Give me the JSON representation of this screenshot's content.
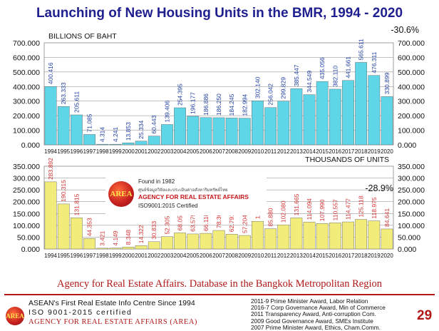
{
  "title": "Launching of New Housing Units in the BMR, 1994 - 2020",
  "chart_data": [
    {
      "type": "bar",
      "unit_label": "BILLIONS OF BAHT",
      "change_label": "-30.6%",
      "categories": [
        "1994",
        "1995",
        "1996",
        "1997",
        "1998",
        "1999",
        "2000",
        "2001",
        "2002",
        "2003",
        "2004",
        "2005",
        "2006",
        "2007",
        "2008",
        "2009",
        "2010",
        "2011",
        "2012",
        "2013",
        "2014",
        "2015",
        "2016",
        "2017",
        "2018",
        "2019",
        "2020"
      ],
      "values": [
        400.416,
        263.333,
        205.611,
        71.085,
        4.314,
        4.241,
        13.853,
        25.334,
        60.443,
        139.406,
        254.395,
        196.177,
        186.886,
        186.25,
        184.245,
        182.994,
        302.14,
        256.042,
        299.829,
        385.447,
        344.549,
        435.056,
        382.11,
        441.661,
        565.611,
        476.311,
        330.899
      ],
      "value_labels": [
        "400.416",
        "263.333",
        "205.611",
        "71.085",
        "4.314",
        "4.241",
        "13.853",
        "25.334",
        "60.443",
        "139.406",
        "254.395",
        "196.177",
        "186.886",
        "186.250",
        "184.245",
        "182.994",
        "302.140",
        "256.042",
        "299.829",
        "385.447",
        "344.549",
        "435.056",
        "382.110",
        "441.661",
        "565.611",
        "476.311",
        "330.899"
      ],
      "ylim": [
        0,
        700
      ],
      "yticks": [
        "0.000",
        "100.000",
        "200.000",
        "300.000",
        "400.000",
        "500.000",
        "600.000",
        "700.000"
      ],
      "bar_color": "#5fd6e8",
      "label_color": "#1f3fa3",
      "grid": true
    },
    {
      "type": "bar",
      "unit_label": "THOUSANDS OF UNITS",
      "change_label": "-28.9%",
      "categories": [
        "1994",
        "1995",
        "1996",
        "1997",
        "1998",
        "1999",
        "2000",
        "2001",
        "2002",
        "2003",
        "2004",
        "2005",
        "2006",
        "2007",
        "2008",
        "2009",
        "2010",
        "2011",
        "2012",
        "2013",
        "2014",
        "2015",
        "2016",
        "2017",
        "2018",
        "2019",
        "2020"
      ],
      "values": [
        283.892,
        190.315,
        131.815,
        44.353,
        3.421,
        4.149,
        8.348,
        14.322,
        30.833,
        52.305,
        68.052,
        63.579,
        66.118,
        78.364,
        62.791,
        57.204,
        116.793,
        85.88,
        102.08,
        131.665,
        114.094,
        107.99,
        110.557,
        114.477,
        125.118,
        118.975,
        84.641
      ],
      "value_labels": [
        "283.892",
        "190.315",
        "131.815",
        "44.353",
        "3.421",
        "4.149",
        "8.348",
        "14.322",
        "30.833",
        "52.305",
        "68.052",
        "63.579",
        "66.118",
        "78.364",
        "62.791",
        "57.204",
        "116.793",
        "85.880",
        "102.080",
        "131.665",
        "114.094",
        "107.990",
        "110.557",
        "114.477",
        "125.118",
        "118.975",
        "84.641"
      ],
      "ylim": [
        0,
        350
      ],
      "yticks": [
        "0.000",
        "50.000",
        "100.000",
        "150.000",
        "200.000",
        "250.000",
        "300.000",
        "350.000"
      ],
      "bar_color": "#f2ec7a",
      "label_color": "#d23232",
      "grid": true
    }
  ],
  "badge": {
    "found": "Found in 1982",
    "thai_name": "ศูนย์ข้อมูลวิจัยและประเมินค่าอสังหาริมทรัพย์ไทย",
    "name": "AGENCY FOR REAL ESTATE AFFAIRS",
    "iso": "ISO9001:2015 Certified",
    "logo_text": "AREA"
  },
  "footer": {
    "source": "Agency for Real Estate Affairs. Database in the Bangkok Metropolitan Region",
    "logo_text": "AREA",
    "line1": "ASEAN's First Real Estate Info Centre Since 1994",
    "line2": "ISO 9001-2015 certified",
    "line3": "AGENCY FOR REAL ESTATE AFFAIRS (AREA)",
    "awards": [
      "2011-9 Prime Minister Award, Labor Relation",
      "2016-7 Corp Governance Award, Min of Commerce",
      "2011 Transparency Award, Anti-corruption Com.",
      "2009 Good Governance Award, SMEs Institute",
      "2007 Prime Minister Award, Ethics, Cham.Comm."
    ],
    "page_number": "29"
  }
}
